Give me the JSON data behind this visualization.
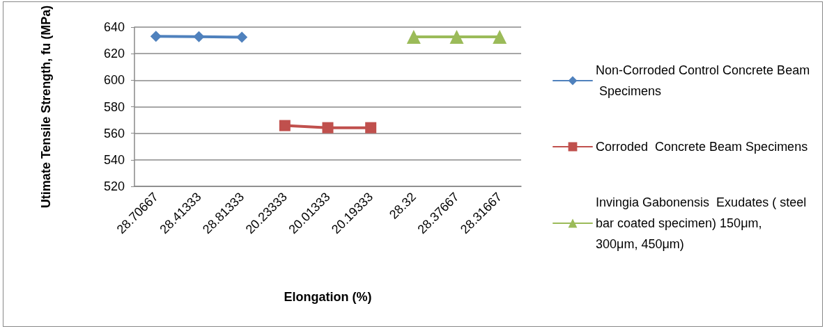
{
  "chart_data": {
    "type": "line",
    "xlabel": "Elongation (%)",
    "ylabel": "Utimate Tensile Strength, fu (MPa)",
    "categories": [
      "28.70667",
      "28.41333",
      "28.81333",
      "20.23333",
      "20.01333",
      "20.19333",
      "28.32",
      "28.37667",
      "28.31667"
    ],
    "series": [
      {
        "name": "Non-Corroded Control Concrete Beam Specimens",
        "color": "#4f81bd",
        "marker": "diamond",
        "values": [
          633,
          632.8,
          632.4,
          null,
          null,
          null,
          null,
          null,
          null
        ]
      },
      {
        "name": "Corroded  Concrete Beam Specimens",
        "color": "#c0504d",
        "marker": "square",
        "values": [
          null,
          null,
          null,
          565.8,
          564.2,
          564.2,
          null,
          null,
          null
        ]
      },
      {
        "name": "Invingia Gabonensis  Exudates ( steel bar coated specimen) 150μm, 300μm, 450μm)",
        "color": "#9bbb59",
        "marker": "triangle",
        "values": [
          null,
          null,
          null,
          null,
          null,
          null,
          632.6,
          632.6,
          632.6
        ]
      }
    ],
    "ylim": [
      520,
      640
    ],
    "yticks": [
      520,
      540,
      560,
      580,
      600,
      620,
      640
    ],
    "grid": "y",
    "legend": "right",
    "line_style": "solid"
  }
}
